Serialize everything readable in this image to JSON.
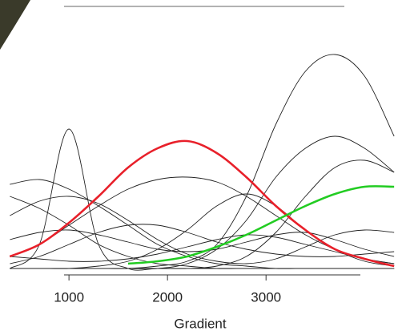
{
  "chart_data": {
    "type": "line",
    "x_label": "Gradient",
    "x": [
      400,
      700,
      1000,
      1300,
      1600,
      1900,
      2200,
      2500,
      2800,
      3100,
      3400,
      3700,
      4000,
      4300
    ],
    "xlim": [
      300,
      4380
    ],
    "xticks": [
      1000,
      2000,
      3000
    ],
    "ylim": [
      0,
      1
    ],
    "series": [
      {
        "color": "#222222",
        "values": [
          0,
          0,
          0,
          0,
          0,
          0.01,
          0.03,
          0.1,
          0.3,
          0.6,
          0.82,
          0.89,
          0.8,
          0.55
        ]
      },
      {
        "color": "#222222",
        "values": [
          0.3,
          0.25,
          0.18,
          0.1,
          0.05,
          0.02,
          0.01,
          0,
          0,
          0,
          0,
          0,
          0,
          0
        ]
      },
      {
        "color": "#222222",
        "values": [
          0,
          0.1,
          0.58,
          0.1,
          0,
          0,
          0,
          0,
          0,
          0,
          0,
          0,
          0,
          0
        ]
      },
      {
        "color": "#222222",
        "values": [
          0.05,
          0.1,
          0.18,
          0.26,
          0.33,
          0.37,
          0.38,
          0.36,
          0.3,
          0.22,
          0.14,
          0.08,
          0.04,
          0.02
        ]
      },
      {
        "color": "#222222",
        "values": [
          0,
          0,
          0,
          0,
          0,
          0,
          0.02,
          0.08,
          0.2,
          0.38,
          0.5,
          0.55,
          0.5,
          0.4
        ]
      },
      {
        "color": "#222222",
        "values": [
          0.35,
          0.37,
          0.33,
          0.26,
          0.18,
          0.1,
          0.05,
          0.02,
          0.01,
          0,
          0,
          0,
          0,
          0
        ]
      },
      {
        "color": "#222222",
        "values": [
          0.02,
          0.05,
          0.1,
          0.15,
          0.18,
          0.18,
          0.15,
          0.11,
          0.08,
          0.06,
          0.05,
          0.05,
          0.06,
          0.07
        ]
      },
      {
        "color": "#222222",
        "values": [
          0,
          0,
          0,
          0,
          0,
          0,
          0,
          0.01,
          0.05,
          0.15,
          0.3,
          0.42,
          0.45,
          0.4
        ]
      },
      {
        "color": "#222222",
        "values": [
          0.12,
          0.15,
          0.16,
          0.14,
          0.11,
          0.08,
          0.07,
          0.08,
          0.11,
          0.14,
          0.15,
          0.12,
          0.08,
          0.05
        ]
      },
      {
        "color": "#222222",
        "values": [
          0.22,
          0.28,
          0.3,
          0.27,
          0.2,
          0.12,
          0.06,
          0.03,
          0.02,
          0.04,
          0.09,
          0.14,
          0.16,
          0.15
        ]
      },
      {
        "color": "#222222",
        "values": [
          0.05,
          0.04,
          0.03,
          0.03,
          0.04,
          0.06,
          0.09,
          0.12,
          0.14,
          0.13,
          0.1,
          0.07,
          0.04,
          0.02
        ]
      },
      {
        "color": "#222222",
        "values": [
          0,
          0,
          0,
          0.01,
          0.03,
          0.08,
          0.16,
          0.26,
          0.31,
          0.26,
          0.16,
          0.08,
          0.03,
          0.01
        ]
      },
      {
        "color": "#e8202a",
        "values": [
          0.05,
          0.1,
          0.19,
          0.3,
          0.42,
          0.5,
          0.53,
          0.48,
          0.38,
          0.26,
          0.16,
          0.08,
          0.04,
          0.01
        ]
      },
      {
        "color": "#22cc22",
        "values": [
          null,
          null,
          null,
          null,
          0.02,
          0.03,
          0.05,
          0.09,
          0.14,
          0.2,
          0.26,
          0.31,
          0.34,
          0.34
        ]
      }
    ]
  }
}
